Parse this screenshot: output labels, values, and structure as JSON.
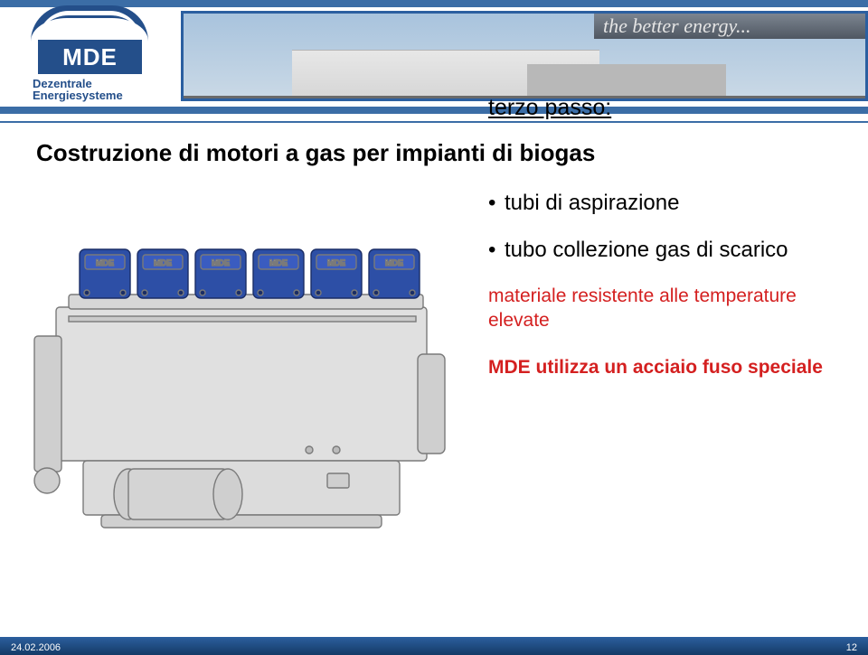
{
  "header": {
    "tagline": "the better energy...",
    "logo_text": "MDE",
    "logo_sub_1": "Dezentrale",
    "logo_sub_2": "Energiesysteme"
  },
  "colors": {
    "brand_blue": "#244f8a",
    "stripe_blue": "#3b6da6",
    "footer_dark": "#143a66",
    "accent_red": "#d42020",
    "engine_stroke": "#7a7a7a",
    "engine_fill": "#d6d6d6",
    "engine_dark": "#bdbdbd",
    "cyl_blue": "#2d4fa6",
    "cyl_label": "MDE"
  },
  "slide": {
    "title": "Costruzione di motori a gas per impianti di biogas",
    "step": "terzo passo:",
    "bullet1": "tubi di aspirazione",
    "bullet2": "tubo collezione gas di scarico",
    "red1": "materiale resistente alle temperature elevate",
    "red2": "MDE utilizza un acciaio fuso speciale"
  },
  "engine": {
    "cylinders": 6
  },
  "footer": {
    "date": "24.02.2006",
    "page": "12"
  }
}
